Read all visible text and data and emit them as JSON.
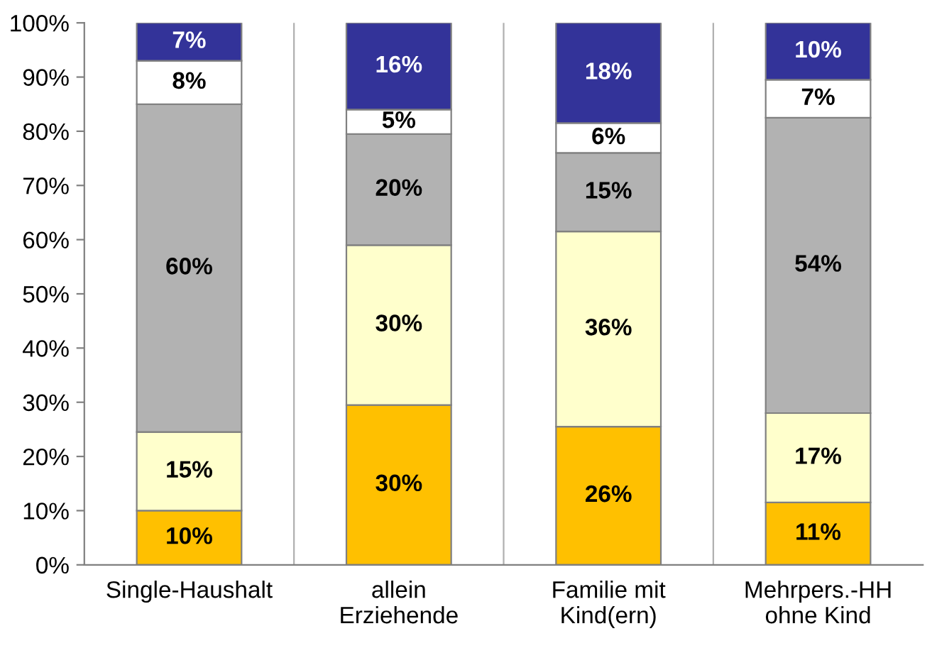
{
  "chart_data": {
    "type": "bar",
    "stacked": true,
    "categories": [
      "Single-Haushalt",
      "allein\nErziehende",
      "Familie mit\nKind(ern)",
      "Mehrpers.-HH\nohne Kind"
    ],
    "series": [
      {
        "color": "#ffc000",
        "values": [
          10,
          29.5,
          25.5,
          11.5
        ],
        "value_labels": [
          "10%",
          "30%",
          "26%",
          "11%"
        ]
      },
      {
        "color": "#ffffcc",
        "values": [
          14.5,
          29.5,
          36,
          16.5
        ],
        "value_labels": [
          "15%",
          "30%",
          "36%",
          "17%"
        ]
      },
      {
        "color": "#b2b2b2",
        "values": [
          60.5,
          20.5,
          14.5,
          54.5
        ],
        "value_labels": [
          "60%",
          "20%",
          "15%",
          "54%"
        ]
      },
      {
        "color": "#ffffff",
        "values": [
          8,
          4.5,
          5.5,
          7
        ],
        "value_labels": [
          "8%",
          "5%",
          "6%",
          "7%"
        ]
      },
      {
        "color": "#333399",
        "values": [
          7,
          16,
          18.5,
          10.5
        ],
        "value_labels": [
          "7%",
          "16%",
          "18%",
          "10%"
        ]
      }
    ],
    "ylim": [
      0,
      100
    ],
    "yticks": [
      {
        "value": 0,
        "label": "0%"
      },
      {
        "value": 10,
        "label": "10%"
      },
      {
        "value": 20,
        "label": "20%"
      },
      {
        "value": 30,
        "label": "30%"
      },
      {
        "value": 40,
        "label": "40%"
      },
      {
        "value": 50,
        "label": "50%"
      },
      {
        "value": 60,
        "label": "60%"
      },
      {
        "value": 70,
        "label": "70%"
      },
      {
        "value": 80,
        "label": "80%"
      },
      {
        "value": 90,
        "label": "90%"
      },
      {
        "value": 100,
        "label": "100%"
      }
    ]
  }
}
